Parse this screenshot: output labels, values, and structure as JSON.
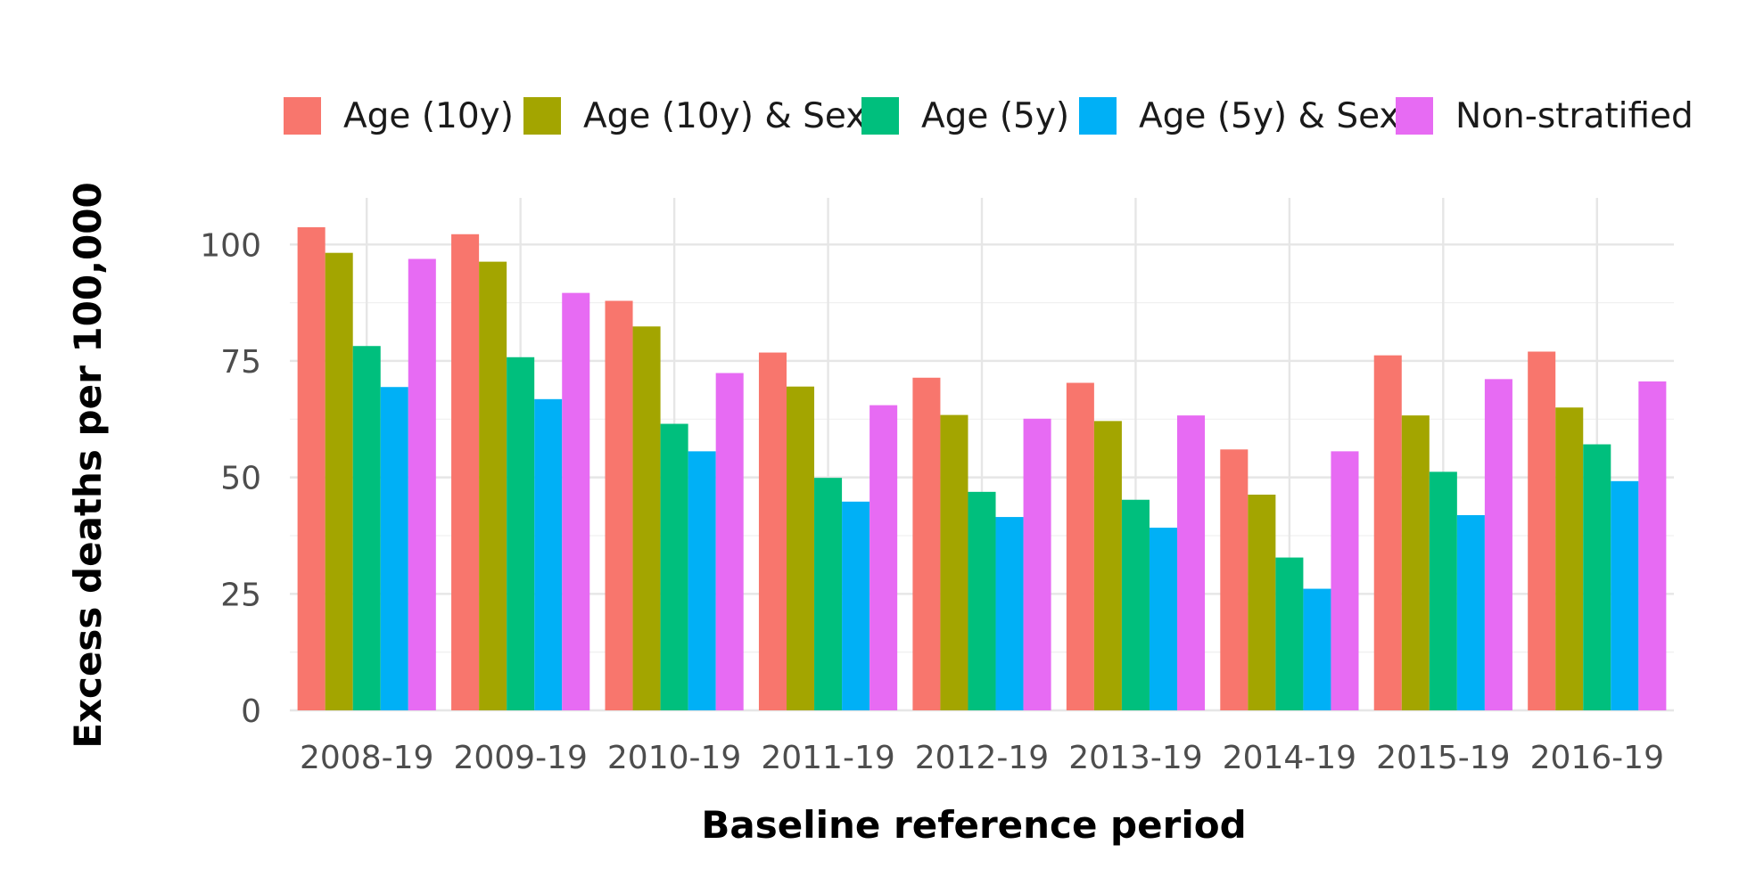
{
  "chart_data": {
    "type": "bar",
    "title": "",
    "xlabel": "Baseline reference period",
    "ylabel": "Excess deaths per 100,000",
    "ylim": [
      0,
      110
    ],
    "yticks": [
      0,
      25,
      50,
      75,
      100
    ],
    "grid": true,
    "legend_position": "top",
    "categories": [
      "2008-19",
      "2009-19",
      "2010-19",
      "2011-19",
      "2012-19",
      "2013-19",
      "2014-19",
      "2015-19",
      "2016-19"
    ],
    "series": [
      {
        "name": "Age (10y)",
        "color": "#F8766D",
        "values": [
          103.7,
          102.2,
          87.9,
          76.8,
          71.4,
          70.3,
          56.0,
          76.2,
          77.0
        ]
      },
      {
        "name": "Age (10y) & Sex",
        "color": "#A3A500",
        "values": [
          98.2,
          96.3,
          82.4,
          69.5,
          63.4,
          62.1,
          46.3,
          63.3,
          65.0
        ]
      },
      {
        "name": "Age (5y)",
        "color": "#00BF7D",
        "values": [
          78.2,
          75.8,
          61.5,
          49.9,
          46.9,
          45.2,
          32.8,
          51.2,
          57.1
        ]
      },
      {
        "name": "Age (5y) & Sex",
        "color": "#00B0F6",
        "values": [
          69.4,
          66.8,
          55.6,
          44.8,
          41.5,
          39.2,
          26.1,
          41.9,
          49.2
        ]
      },
      {
        "name": "Non-stratified",
        "color": "#E76BF3",
        "values": [
          96.9,
          89.6,
          72.4,
          65.5,
          62.6,
          63.3,
          55.6,
          71.1,
          70.6
        ]
      }
    ]
  }
}
